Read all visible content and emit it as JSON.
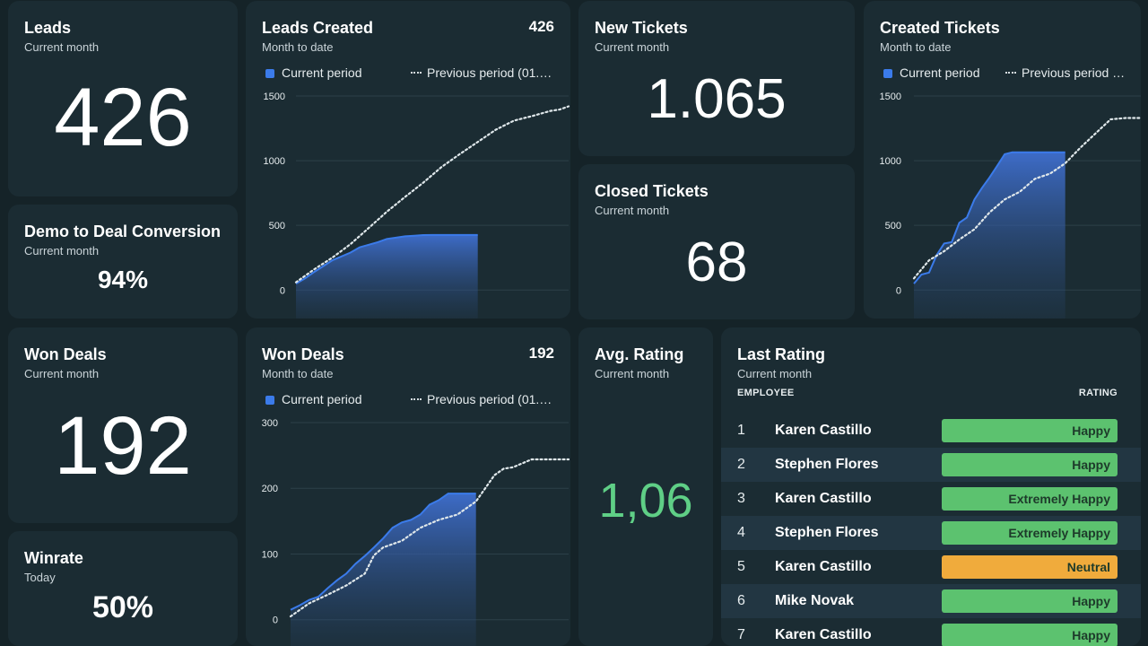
{
  "leads": {
    "title": "Leads",
    "subtitle": "Current month",
    "value": "426"
  },
  "demo": {
    "title": "Demo to Deal Conversion",
    "subtitle": "Current month",
    "value": "94%"
  },
  "won": {
    "title": "Won Deals",
    "subtitle": "Current month",
    "value": "192"
  },
  "winrate": {
    "title": "Winrate",
    "subtitle": "Today",
    "value": "50%"
  },
  "new_tickets": {
    "title": "New Tickets",
    "subtitle": "Current month",
    "value": "1.065"
  },
  "closed_tickets": {
    "title": "Closed Tickets",
    "subtitle": "Current month",
    "value": "68"
  },
  "avg_rating": {
    "title": "Avg. Rating",
    "subtitle": "Current month",
    "value": "1,06",
    "color": "#5fcf86"
  },
  "leads_created": {
    "title": "Leads Created",
    "subtitle": "Month to date",
    "total": "426",
    "legend_current": "Current period",
    "legend_previous": "Previous period (01.…"
  },
  "won_deals_chart": {
    "title": "Won Deals",
    "subtitle": "Month to date",
    "total": "192",
    "legend_current": "Current period",
    "legend_previous": "Previous period (01.…"
  },
  "created_tickets": {
    "title": "Created Tickets",
    "subtitle": "Month to date",
    "legend_current": "Current period",
    "legend_previous": "Previous period …"
  },
  "last_rating": {
    "title": "Last Rating",
    "subtitle": "Current month",
    "col_employee": "EMPLOYEE",
    "col_rating": "RATING",
    "rows": [
      {
        "n": "1",
        "name": "Karen Castillo",
        "rating": "Happy",
        "color": "#5cc26f"
      },
      {
        "n": "2",
        "name": "Stephen Flores",
        "rating": "Happy",
        "color": "#5cc26f"
      },
      {
        "n": "3",
        "name": "Karen Castillo",
        "rating": "Extremely Happy",
        "color": "#5cc26f"
      },
      {
        "n": "4",
        "name": "Stephen Flores",
        "rating": "Extremely Happy",
        "color": "#5cc26f"
      },
      {
        "n": "5",
        "name": "Karen Castillo",
        "rating": "Neutral",
        "color": "#f0ab3c"
      },
      {
        "n": "6",
        "name": "Mike Novak",
        "rating": "Happy",
        "color": "#5cc26f"
      },
      {
        "n": "7",
        "name": "Karen Castillo",
        "rating": "Happy",
        "color": "#5cc26f"
      }
    ]
  },
  "chart_data": [
    {
      "type": "area",
      "id": "leads_created",
      "yticks": [
        0,
        500,
        1000,
        1500
      ],
      "ylim": [
        -220,
        1500
      ],
      "xlim": [
        0,
        30
      ],
      "series": [
        {
          "name": "Current period",
          "style": "area",
          "x": [
            0,
            1,
            2,
            3,
            4,
            5,
            6,
            7,
            8,
            9,
            10,
            11,
            12,
            13,
            14,
            15,
            16,
            17,
            18,
            19,
            20
          ],
          "values": [
            50,
            90,
            140,
            185,
            230,
            260,
            290,
            330,
            350,
            370,
            395,
            405,
            415,
            420,
            425,
            426,
            426,
            426,
            426,
            426,
            426
          ]
        },
        {
          "name": "Previous period (01.…",
          "style": "dotted",
          "x": [
            0,
            2,
            4,
            6,
            8,
            10,
            12,
            14,
            16,
            18,
            20,
            22,
            24,
            26,
            28,
            29,
            30
          ],
          "values": [
            60,
            160,
            250,
            355,
            480,
            605,
            720,
            830,
            950,
            1050,
            1145,
            1240,
            1310,
            1345,
            1385,
            1395,
            1420
          ]
        }
      ]
    },
    {
      "type": "area",
      "id": "won_deals_chart",
      "yticks": [
        0,
        100,
        200,
        300
      ],
      "ylim": [
        -40,
        300
      ],
      "xlim": [
        0,
        30
      ],
      "series": [
        {
          "name": "Current period",
          "style": "area",
          "x": [
            0,
            1,
            2,
            3,
            4,
            5,
            6,
            7,
            8,
            9,
            10,
            11,
            12,
            13,
            14,
            15,
            16,
            17,
            18,
            19,
            20
          ],
          "values": [
            15,
            22,
            30,
            35,
            48,
            60,
            70,
            85,
            97,
            110,
            124,
            140,
            148,
            152,
            160,
            175,
            182,
            192,
            192,
            192,
            192
          ]
        },
        {
          "name": "Previous period (01.…",
          "style": "dotted",
          "x": [
            0,
            2,
            4,
            6,
            8,
            9,
            10,
            12,
            14,
            16,
            18,
            20,
            22,
            23,
            24,
            26,
            28,
            30
          ],
          "values": [
            5,
            25,
            38,
            52,
            70,
            98,
            110,
            120,
            140,
            152,
            160,
            180,
            220,
            230,
            232,
            244,
            244,
            244
          ]
        }
      ]
    },
    {
      "type": "area",
      "id": "created_tickets",
      "yticks": [
        0,
        500,
        1000,
        1500
      ],
      "ylim": [
        -220,
        1500
      ],
      "xlim": [
        0,
        30
      ],
      "series": [
        {
          "name": "Current period",
          "style": "area",
          "x": [
            0,
            1,
            2,
            3,
            4,
            5,
            6,
            7,
            8,
            9,
            10,
            11,
            12,
            13,
            14,
            15,
            16,
            17,
            18,
            19,
            20
          ],
          "values": [
            50,
            120,
            135,
            270,
            360,
            370,
            520,
            560,
            700,
            790,
            870,
            960,
            1050,
            1065,
            1065,
            1065,
            1065,
            1065,
            1065,
            1065,
            1065
          ]
        },
        {
          "name": "Previous period …",
          "style": "dotted",
          "x": [
            0,
            2,
            4,
            6,
            8,
            10,
            12,
            14,
            16,
            18,
            20,
            22,
            24,
            26,
            28,
            30
          ],
          "values": [
            90,
            230,
            300,
            390,
            470,
            600,
            700,
            760,
            860,
            900,
            980,
            1100,
            1210,
            1320,
            1330,
            1330
          ]
        }
      ]
    }
  ]
}
